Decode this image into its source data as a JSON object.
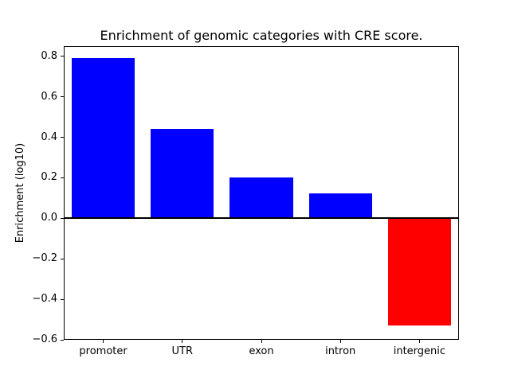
{
  "chart_data": {
    "type": "bar",
    "title": "Enrichment of genomic categories with CRE score.",
    "xlabel": "",
    "ylabel": "Enrichment (log10)",
    "categories": [
      "promoter",
      "UTR",
      "exon",
      "intron",
      "intergenic"
    ],
    "values": [
      0.79,
      0.44,
      0.2,
      0.125,
      -0.53
    ],
    "bar_colors": [
      "#0000ff",
      "#0000ff",
      "#0000ff",
      "#0000ff",
      "#ff0000"
    ],
    "positive_color": "#0000ff",
    "negative_color": "#ff0000",
    "background_color": "#ffffff",
    "axis_color": "#000000",
    "ylim": [
      -0.6,
      0.85
    ],
    "yticks": [
      0.8,
      0.6,
      0.4,
      0.2,
      0.0,
      -0.2,
      -0.4,
      -0.6
    ],
    "ytick_labels": [
      "0.8",
      "0.6",
      "0.4",
      "0.2",
      "0.0",
      "−0.2",
      "−0.4",
      "−0.6"
    ],
    "bar_width_fraction": 0.8,
    "zero_line": true,
    "grid": false,
    "legend": "none"
  }
}
